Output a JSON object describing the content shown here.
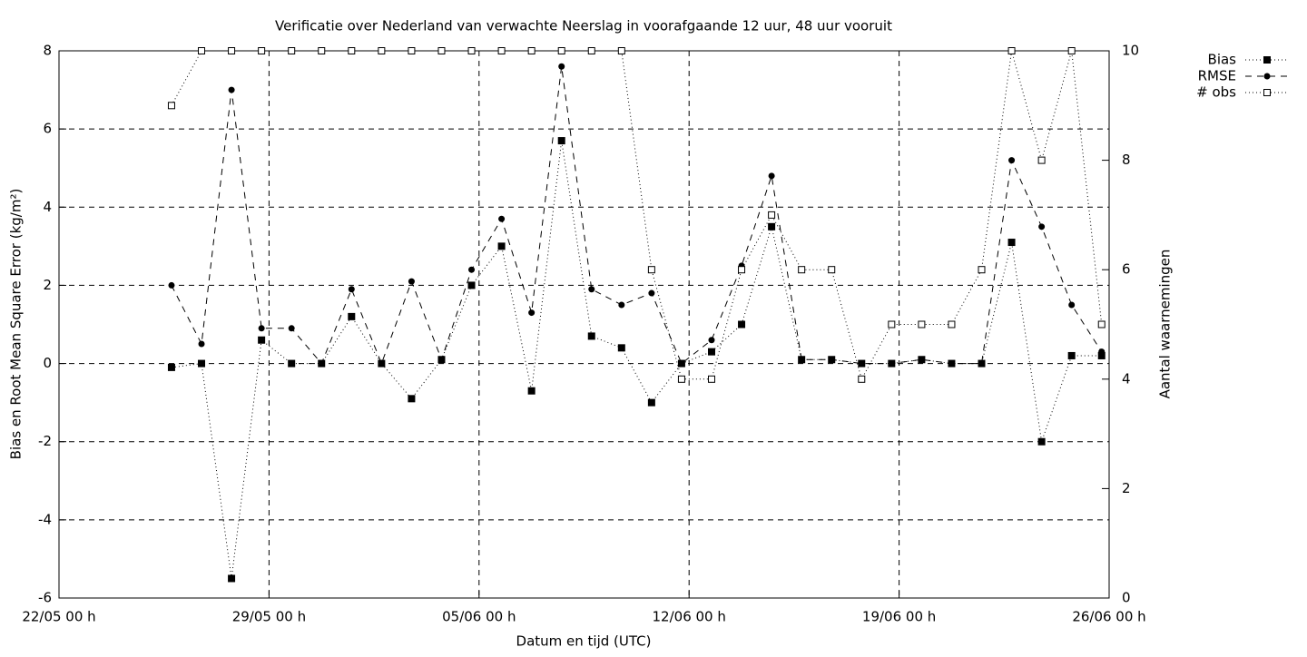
{
  "chart_data": {
    "type": "line",
    "title": "Verificatie over Nederland van verwachte Neerslag in voorafgaande 12 uur, 48 uur vooruit",
    "xlabel": "Datum en tijd (UTC)",
    "ylabel": "Bias en Root Mean Square Error (kg/m²)",
    "y2label": "Aantal waarnemingen",
    "x": [
      "25/05 18 h",
      "26/05 18 h",
      "27/05 18 h",
      "28/05 18 h",
      "29/05 18 h",
      "30/05 18 h",
      "31/05 18 h",
      "01/06 18 h",
      "02/06 18 h",
      "03/06 18 h",
      "04/06 18 h",
      "05/06 18 h",
      "06/06 18 h",
      "07/06 18 h",
      "08/06 18 h",
      "09/06 18 h",
      "10/06 18 h",
      "11/06 18 h",
      "12/06 18 h",
      "13/06 18 h",
      "14/06 18 h",
      "15/06 18 h",
      "16/06 18 h",
      "17/06 18 h",
      "18/06 18 h",
      "19/06 18 h",
      "20/06 18 h",
      "21/06 18 h",
      "22/06 18 h",
      "23/06 18 h",
      "24/06 18 h",
      "25/06 18 h"
    ],
    "xlim": [
      "22/05 00 h",
      "26/06 00 h"
    ],
    "xticks": [
      "22/05 00 h",
      "29/05 00 h",
      "05/06 00 h",
      "12/06 00 h",
      "19/06 00 h",
      "26/06 00 h"
    ],
    "ylim": [
      -6,
      8
    ],
    "yticks": [
      -6,
      -4,
      -2,
      0,
      2,
      4,
      6,
      8
    ],
    "y2lim": [
      0,
      10
    ],
    "y2ticks": [
      0,
      2,
      4,
      6,
      8,
      10
    ],
    "grid": true,
    "legend": "top-right-outside",
    "series": [
      {
        "name": "Bias",
        "color": "#000000",
        "dash": "dotted",
        "marker": "square",
        "values": [
          -0.1,
          0,
          -5.5,
          0.6,
          0,
          0,
          1.2,
          0,
          -0.9,
          0.1,
          2.0,
          3.0,
          -0.7,
          5.7,
          0.7,
          0.4,
          -1.0,
          0,
          0.3,
          1.0,
          3.5,
          0.1,
          0.1,
          0,
          0,
          0.1,
          0,
          0,
          3.1,
          -2.0,
          0.2,
          0.2
        ]
      },
      {
        "name": "RMSE",
        "color": "#000000",
        "dash": "dashed",
        "marker": "circle",
        "values": [
          2.0,
          0.5,
          7.0,
          0.9,
          0.9,
          0,
          1.9,
          0,
          2.1,
          0.1,
          2.4,
          3.7,
          1.3,
          7.6,
          1.9,
          1.5,
          1.8,
          0,
          0.6,
          2.5,
          4.8,
          0.1,
          0.1,
          0,
          0,
          0.1,
          0,
          0,
          5.2,
          3.5,
          1.5,
          0.3
        ]
      },
      {
        "name": "# obs",
        "color": "#000000",
        "dash": "dotted",
        "marker": "open-square",
        "axis": "y2",
        "values": [
          9,
          10,
          10,
          10,
          10,
          10,
          10,
          10,
          10,
          10,
          10,
          10,
          10,
          10,
          10,
          10,
          6,
          4,
          4,
          6,
          7,
          6,
          6,
          4,
          5,
          5,
          5,
          6,
          10,
          8,
          10,
          5
        ]
      }
    ]
  }
}
